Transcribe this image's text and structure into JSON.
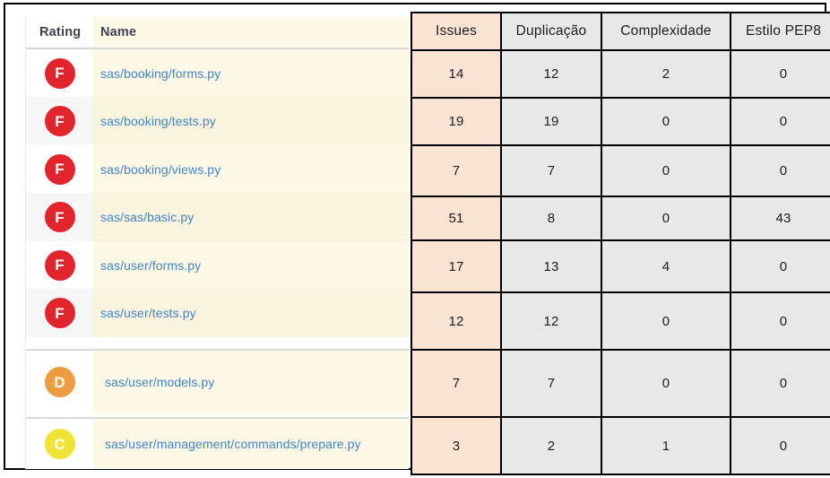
{
  "left_table": {
    "headers": {
      "rating": "Rating",
      "name": "Name"
    },
    "rows": [
      {
        "grade": "F",
        "badge_color": "#e2242d",
        "name": "sas/booking/forms.py"
      },
      {
        "grade": "F",
        "badge_color": "#e2242d",
        "name": "sas/booking/tests.py"
      },
      {
        "grade": "F",
        "badge_color": "#e2242d",
        "name": "sas/booking/views.py"
      },
      {
        "grade": "F",
        "badge_color": "#e2242d",
        "name": "sas/sas/basic.py"
      },
      {
        "grade": "F",
        "badge_color": "#e2242d",
        "name": "sas/user/forms.py"
      },
      {
        "grade": "F",
        "badge_color": "#e2242d",
        "name": "sas/user/tests.py"
      },
      {
        "grade": "D",
        "badge_color": "#ee9c40",
        "name": "sas/user/models.py"
      },
      {
        "grade": "C",
        "badge_color": "#efe336",
        "name": "sas/user/management/commands/prepare.py"
      }
    ]
  },
  "metrics_table": {
    "headers": [
      "Issues",
      "Duplicação",
      "Complexidade",
      "Estilo PEP8"
    ],
    "rows": [
      {
        "issues": "14",
        "duplication": "12",
        "complexity": "2",
        "pep8": "0"
      },
      {
        "issues": "19",
        "duplication": "19",
        "complexity": "0",
        "pep8": "0"
      },
      {
        "issues": "7",
        "duplication": "7",
        "complexity": "0",
        "pep8": "0"
      },
      {
        "issues": "51",
        "duplication": "8",
        "complexity": "0",
        "pep8": "43"
      },
      {
        "issues": "17",
        "duplication": "13",
        "complexity": "4",
        "pep8": "0"
      },
      {
        "issues": "12",
        "duplication": "12",
        "complexity": "0",
        "pep8": "0"
      },
      {
        "issues": "7",
        "duplication": "7",
        "complexity": "0",
        "pep8": "0"
      },
      {
        "issues": "3",
        "duplication": "2",
        "complexity": "1",
        "pep8": "0"
      }
    ]
  },
  "colors": {
    "grade_f": "#e2242d",
    "grade_d": "#ee9c40",
    "grade_c": "#efe336",
    "issues_column_bg": "#fbe3d4",
    "metric_column_bg": "#e9e8e8",
    "name_column_bg": "#fcf8e5",
    "link_blue": "#4384c8",
    "header_text": "#3e4450",
    "table_border": "#000000"
  }
}
